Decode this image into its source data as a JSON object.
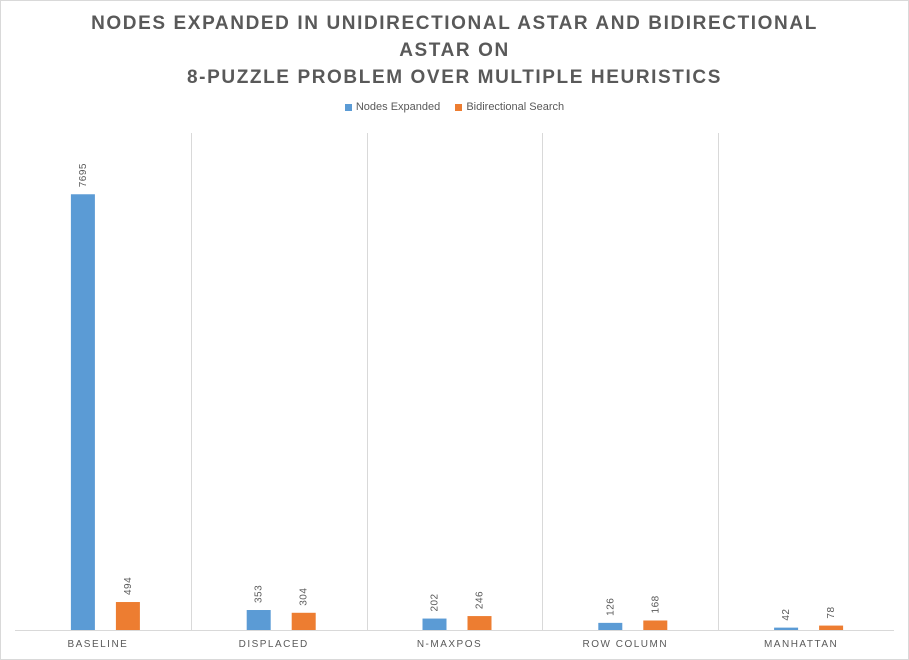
{
  "chart_data": {
    "type": "bar",
    "title_lines": [
      "NODES EXPANDED IN UNIDIRECTIONAL ASTAR AND BIDIRECTIONAL",
      "ASTAR ON",
      "8-PUZZLE PROBLEM OVER MULTIPLE HEURISTICS"
    ],
    "categories": [
      "BASELINE",
      "DISPLACED",
      "N-MAXPOS",
      "ROW COLUMN",
      "MANHATTAN"
    ],
    "series": [
      {
        "name": "Nodes Expanded",
        "color": "#5b9bd5",
        "values": [
          7695,
          353,
          202,
          126,
          42
        ]
      },
      {
        "name": "Bidirectional Search",
        "color": "#ed7d31",
        "values": [
          494,
          304,
          246,
          168,
          78
        ]
      }
    ],
    "ylim": [
      0,
      8300
    ],
    "legend_position": "top-center",
    "grid": "vertical category separators"
  }
}
